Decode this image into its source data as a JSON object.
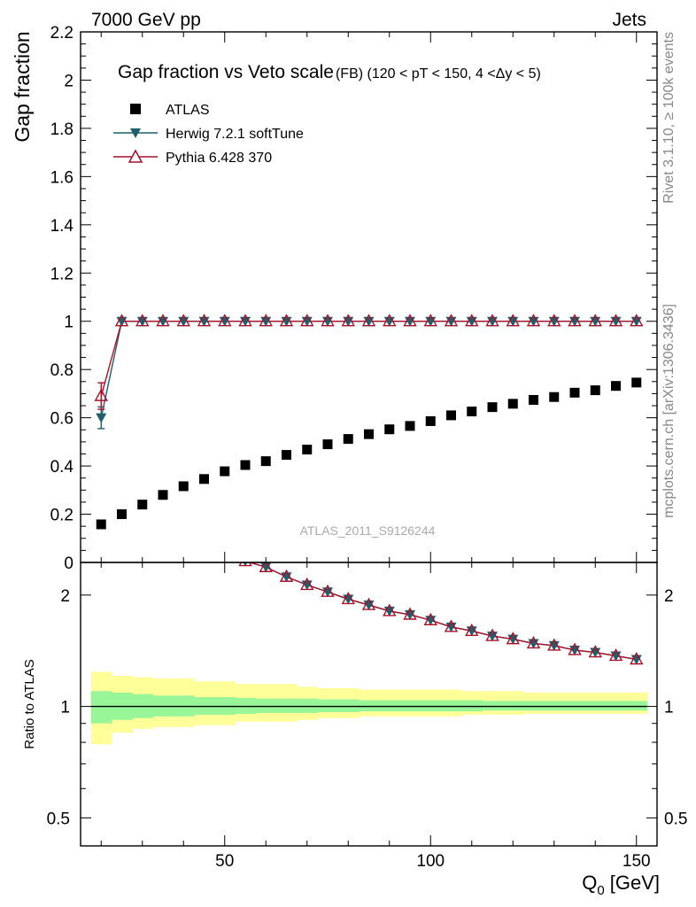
{
  "header": {
    "left": "7000 GeV pp",
    "right": "Jets"
  },
  "title": {
    "main": "Gap fraction vs Veto scale",
    "sub": "(FB) (120 < pT < 150, 4 <Δy < 5)"
  },
  "watermark": "ATLAS_2011_S9126244",
  "side_text": {
    "rivet": "Rivet 3.1.10, ≥ 100k events",
    "mcplots": "mcplots.cern.ch [arXiv:1306.3436]"
  },
  "colors": {
    "atlas": "#000000",
    "herwig": "#1f5f6b",
    "pythia": "#a8102a",
    "band_inner": "#98f598",
    "band_outer": "#ffff99"
  },
  "chart_data": [
    {
      "type": "scatter",
      "name": "main",
      "ylabel": "Gap fraction",
      "xlabel": "",
      "xlim": [
        15,
        155
      ],
      "ylim": [
        0,
        2.2
      ],
      "yticks": [
        0,
        0.2,
        0.4,
        0.6,
        0.8,
        1,
        1.2,
        1.4,
        1.6,
        1.8,
        2,
        2.2
      ],
      "ytick_labels": [
        "0",
        "0.2",
        "0.4",
        "0.6",
        "0.8",
        "1",
        "1.2",
        "1.4",
        "1.6",
        "1.8",
        "2",
        "2.2"
      ],
      "x": [
        20,
        25,
        30,
        35,
        40,
        45,
        50,
        55,
        60,
        65,
        70,
        75,
        80,
        85,
        90,
        95,
        100,
        105,
        110,
        115,
        120,
        125,
        130,
        135,
        140,
        145,
        150
      ],
      "series": [
        {
          "name": "ATLAS",
          "marker": "square",
          "values": [
            0.158,
            0.2,
            0.24,
            0.28,
            0.316,
            0.346,
            0.378,
            0.404,
            0.42,
            0.446,
            0.468,
            0.49,
            0.512,
            0.532,
            0.552,
            0.566,
            0.586,
            0.61,
            0.626,
            0.644,
            0.658,
            0.674,
            0.686,
            0.704,
            0.714,
            0.732,
            0.746
          ]
        },
        {
          "name": "Herwig 7.2.1 softTune",
          "marker": "triangle-down",
          "values": [
            0.6,
            1,
            1,
            1,
            1,
            1,
            1,
            1,
            1,
            1,
            1,
            1,
            1,
            1,
            1,
            1,
            1,
            1,
            1,
            1,
            1,
            1,
            1,
            1,
            1,
            1,
            1
          ],
          "first_error": [
            0.555,
            0.645
          ]
        },
        {
          "name": "Pythia 6.428 370",
          "marker": "triangle-up-open",
          "values": [
            0.69,
            1,
            1,
            1,
            1,
            1,
            1,
            1,
            1,
            1,
            1,
            1,
            1,
            1,
            1,
            1,
            1,
            1,
            1,
            1,
            1,
            1,
            1,
            1,
            1,
            1,
            1
          ],
          "first_error": [
            0.635,
            0.745
          ]
        }
      ]
    },
    {
      "type": "line",
      "name": "ratio",
      "ylabel": "Ratio to ATLAS",
      "xlabel": "Q",
      "xlabel_sub": "0",
      "xlabel_unit": "[GeV]",
      "ylim_log": [
        0.42,
        2.45
      ],
      "yticks": [
        0.5,
        1,
        2
      ],
      "ytick_labels": [
        "0.5",
        "1",
        "2"
      ],
      "xticks": [
        50,
        100,
        150
      ],
      "xtick_labels": [
        "50",
        "100",
        "150"
      ],
      "x": [
        55,
        60,
        65,
        70,
        75,
        80,
        85,
        90,
        95,
        100,
        105,
        110,
        115,
        120,
        125,
        130,
        135,
        140,
        145,
        150
      ],
      "series": [
        {
          "name": "Herwig 7.2.1 softTune",
          "values": [
            2.47,
            2.38,
            2.24,
            2.13,
            2.04,
            1.95,
            1.88,
            1.81,
            1.77,
            1.71,
            1.64,
            1.6,
            1.55,
            1.52,
            1.48,
            1.46,
            1.42,
            1.4,
            1.37,
            1.34
          ]
        },
        {
          "name": "Pythia 6.428 370",
          "values": [
            2.47,
            2.38,
            2.24,
            2.13,
            2.04,
            1.95,
            1.88,
            1.81,
            1.77,
            1.71,
            1.64,
            1.6,
            1.55,
            1.52,
            1.48,
            1.46,
            1.42,
            1.4,
            1.37,
            1.34
          ]
        }
      ],
      "band_x_edges": [
        17.5,
        22.5,
        27.5,
        32.5,
        37.5,
        42.5,
        47.5,
        52.5,
        57.5,
        62.5,
        67.5,
        72.5,
        77.5,
        82.5,
        87.5,
        92.5,
        97.5,
        102.5,
        107.5,
        112.5,
        117.5,
        122.5,
        127.5,
        132.5,
        137.5,
        142.5,
        147.5,
        152.5
      ],
      "band_inner": [
        [
          0.9,
          1.1
        ],
        [
          0.92,
          1.09
        ],
        [
          0.93,
          1.08
        ],
        [
          0.94,
          1.07
        ],
        [
          0.94,
          1.07
        ],
        [
          0.95,
          1.06
        ],
        [
          0.95,
          1.06
        ],
        [
          0.955,
          1.055
        ],
        [
          0.96,
          1.05
        ],
        [
          0.96,
          1.05
        ],
        [
          0.96,
          1.05
        ],
        [
          0.965,
          1.045
        ],
        [
          0.965,
          1.045
        ],
        [
          0.97,
          1.04
        ],
        [
          0.97,
          1.04
        ],
        [
          0.97,
          1.04
        ],
        [
          0.97,
          1.04
        ],
        [
          0.97,
          1.04
        ],
        [
          0.97,
          1.04
        ],
        [
          0.975,
          1.035
        ],
        [
          0.975,
          1.035
        ],
        [
          0.975,
          1.035
        ],
        [
          0.975,
          1.035
        ],
        [
          0.975,
          1.035
        ],
        [
          0.975,
          1.035
        ],
        [
          0.975,
          1.035
        ],
        [
          0.975,
          1.035
        ]
      ],
      "band_outer": [
        [
          0.79,
          1.24
        ],
        [
          0.85,
          1.21
        ],
        [
          0.87,
          1.2
        ],
        [
          0.88,
          1.19
        ],
        [
          0.88,
          1.19
        ],
        [
          0.89,
          1.17
        ],
        [
          0.89,
          1.17
        ],
        [
          0.91,
          1.15
        ],
        [
          0.91,
          1.15
        ],
        [
          0.91,
          1.15
        ],
        [
          0.92,
          1.13
        ],
        [
          0.93,
          1.12
        ],
        [
          0.93,
          1.12
        ],
        [
          0.94,
          1.11
        ],
        [
          0.94,
          1.11
        ],
        [
          0.94,
          1.11
        ],
        [
          0.94,
          1.11
        ],
        [
          0.94,
          1.11
        ],
        [
          0.95,
          1.1
        ],
        [
          0.95,
          1.1
        ],
        [
          0.95,
          1.1
        ],
        [
          0.955,
          1.09
        ],
        [
          0.955,
          1.09
        ],
        [
          0.955,
          1.09
        ],
        [
          0.955,
          1.09
        ],
        [
          0.955,
          1.09
        ],
        [
          0.955,
          1.09
        ]
      ]
    }
  ]
}
